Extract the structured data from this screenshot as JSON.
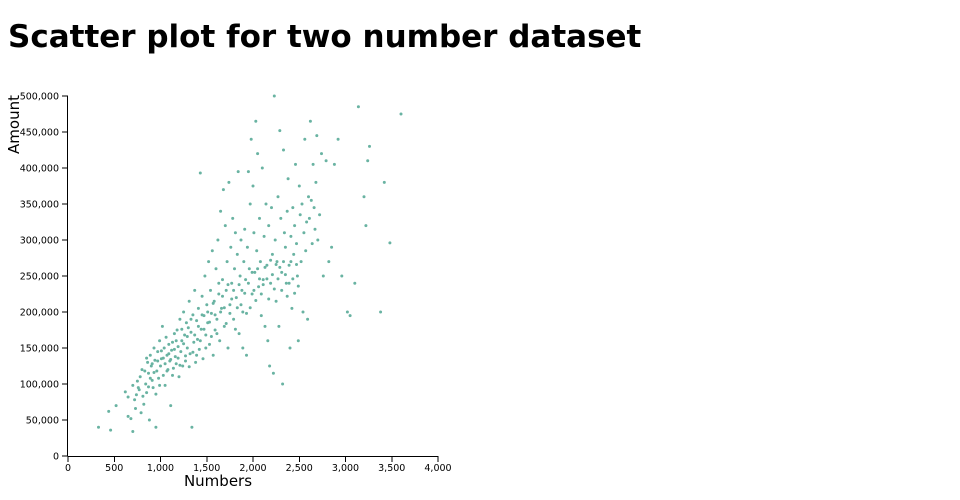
{
  "page": {
    "title": "Scatter plot for two number dataset"
  },
  "chart_data": {
    "type": "scatter",
    "xlabel": "Numbers",
    "ylabel": "Amount",
    "xlim": [
      0,
      4000
    ],
    "ylim": [
      0,
      500000
    ],
    "xticks": [
      0,
      500,
      1000,
      1500,
      2000,
      2500,
      3000,
      3500,
      4000
    ],
    "yticks": [
      0,
      50000,
      100000,
      150000,
      200000,
      250000,
      300000,
      350000,
      400000,
      450000,
      500000
    ],
    "xtick_labels": [
      "0",
      "500",
      "1,000",
      "1,500",
      "2,000",
      "2,500",
      "3,000",
      "3,500",
      "4,000"
    ],
    "ytick_labels": [
      "0",
      "50,000",
      "100,000",
      "150,000",
      "200,000",
      "250,000",
      "300,000",
      "350,000",
      "400,000",
      "450,000",
      "500,000"
    ],
    "grid": false,
    "point_color": "#69b3a2",
    "points": [
      [
        330,
        40000
      ],
      [
        460,
        36000
      ],
      [
        440,
        62000
      ],
      [
        520,
        70000
      ],
      [
        620,
        89000
      ],
      [
        650,
        55000
      ],
      [
        680,
        52000
      ],
      [
        700,
        34000
      ],
      [
        720,
        78000
      ],
      [
        740,
        85000
      ],
      [
        760,
        95000
      ],
      [
        780,
        110000
      ],
      [
        790,
        60000
      ],
      [
        800,
        120000
      ],
      [
        820,
        72000
      ],
      [
        840,
        100000
      ],
      [
        850,
        88000
      ],
      [
        860,
        130000
      ],
      [
        870,
        115000
      ],
      [
        880,
        50000
      ],
      [
        890,
        140000
      ],
      [
        900,
        125000
      ],
      [
        910,
        105000
      ],
      [
        920,
        95000
      ],
      [
        930,
        150000
      ],
      [
        940,
        133000
      ],
      [
        950,
        40000
      ],
      [
        960,
        118000
      ],
      [
        970,
        145000
      ],
      [
        980,
        108000
      ],
      [
        990,
        160000
      ],
      [
        1000,
        125000
      ],
      [
        1010,
        135000
      ],
      [
        1020,
        180000
      ],
      [
        1030,
        112000
      ],
      [
        1040,
        150000
      ],
      [
        1050,
        98000
      ],
      [
        1060,
        165000
      ],
      [
        1070,
        140000
      ],
      [
        1080,
        120000
      ],
      [
        1090,
        155000
      ],
      [
        1100,
        132000
      ],
      [
        1110,
        70000
      ],
      [
        1120,
        147000
      ],
      [
        1130,
        158000
      ],
      [
        1140,
        122000
      ],
      [
        1150,
        170000
      ],
      [
        1160,
        138000
      ],
      [
        1170,
        128000
      ],
      [
        1180,
        175000
      ],
      [
        1190,
        152000
      ],
      [
        1200,
        110000
      ],
      [
        1210,
        190000
      ],
      [
        1220,
        145000
      ],
      [
        1230,
        160000
      ],
      [
        1240,
        125000
      ],
      [
        1250,
        200000
      ],
      [
        1260,
        168000
      ],
      [
        1270,
        139000
      ],
      [
        1280,
        185000
      ],
      [
        1290,
        150000
      ],
      [
        1300,
        178000
      ],
      [
        1310,
        215000
      ],
      [
        1320,
        142000
      ],
      [
        1330,
        172000
      ],
      [
        1340,
        40000
      ],
      [
        1350,
        196000
      ],
      [
        1360,
        158000
      ],
      [
        1370,
        230000
      ],
      [
        1380,
        130000
      ],
      [
        1390,
        188000
      ],
      [
        1400,
        162000
      ],
      [
        1410,
        205000
      ],
      [
        1420,
        148000
      ],
      [
        1430,
        393000
      ],
      [
        1440,
        176000
      ],
      [
        1450,
        222000
      ],
      [
        1460,
        135000
      ],
      [
        1470,
        195000
      ],
      [
        1480,
        250000
      ],
      [
        1490,
        168000
      ],
      [
        1500,
        210000
      ],
      [
        1510,
        185000
      ],
      [
        1520,
        270000
      ],
      [
        1530,
        155000
      ],
      [
        1540,
        230000
      ],
      [
        1550,
        198000
      ],
      [
        1560,
        285000
      ],
      [
        1570,
        140000
      ],
      [
        1580,
        215000
      ],
      [
        1590,
        175000
      ],
      [
        1600,
        260000
      ],
      [
        1610,
        190000
      ],
      [
        1620,
        300000
      ],
      [
        1630,
        225000
      ],
      [
        1640,
        160000
      ],
      [
        1650,
        340000
      ],
      [
        1660,
        205000
      ],
      [
        1670,
        245000
      ],
      [
        1680,
        370000
      ],
      [
        1690,
        180000
      ],
      [
        1700,
        320000
      ],
      [
        1710,
        230000
      ],
      [
        1720,
        270000
      ],
      [
        1730,
        150000
      ],
      [
        1740,
        380000
      ],
      [
        1750,
        210000
      ],
      [
        1760,
        290000
      ],
      [
        1770,
        240000
      ],
      [
        1780,
        330000
      ],
      [
        1790,
        190000
      ],
      [
        1800,
        260000
      ],
      [
        1810,
        310000
      ],
      [
        1820,
        220000
      ],
      [
        1830,
        280000
      ],
      [
        1840,
        395000
      ],
      [
        1850,
        170000
      ],
      [
        1860,
        250000
      ],
      [
        1870,
        300000
      ],
      [
        1880,
        230000
      ],
      [
        1890,
        200000
      ],
      [
        1900,
        270000
      ],
      [
        1910,
        315000
      ],
      [
        1920,
        245000
      ],
      [
        1930,
        140000
      ],
      [
        1940,
        290000
      ],
      [
        1950,
        395000
      ],
      [
        1960,
        260000
      ],
      [
        1970,
        350000
      ],
      [
        1980,
        440000
      ],
      [
        1990,
        225000
      ],
      [
        2000,
        375000
      ],
      [
        2010,
        310000
      ],
      [
        2020,
        255000
      ],
      [
        2030,
        465000
      ],
      [
        2040,
        285000
      ],
      [
        2050,
        420000
      ],
      [
        2060,
        235000
      ],
      [
        2070,
        330000
      ],
      [
        2080,
        270000
      ],
      [
        2090,
        195000
      ],
      [
        2100,
        400000
      ],
      [
        2110,
        245000
      ],
      [
        2120,
        305000
      ],
      [
        2130,
        180000
      ],
      [
        2140,
        350000
      ],
      [
        2150,
        265000
      ],
      [
        2160,
        160000
      ],
      [
        2170,
        320000
      ],
      [
        2180,
        125000
      ],
      [
        2190,
        240000
      ],
      [
        2200,
        345000
      ],
      [
        2210,
        280000
      ],
      [
        2220,
        115000
      ],
      [
        2230,
        500000
      ],
      [
        2240,
        300000
      ],
      [
        2250,
        215000
      ],
      [
        2260,
        270000
      ],
      [
        2270,
        360000
      ],
      [
        2280,
        180000
      ],
      [
        2290,
        452000
      ],
      [
        2300,
        330000
      ],
      [
        2310,
        255000
      ],
      [
        2320,
        100000
      ],
      [
        2330,
        425000
      ],
      [
        2340,
        310000
      ],
      [
        2350,
        290000
      ],
      [
        2360,
        240000
      ],
      [
        2370,
        340000
      ],
      [
        2380,
        385000
      ],
      [
        2390,
        265000
      ],
      [
        2400,
        150000
      ],
      [
        2410,
        305000
      ],
      [
        2420,
        205000
      ],
      [
        2430,
        345000
      ],
      [
        2440,
        280000
      ],
      [
        2450,
        320000
      ],
      [
        2460,
        405000
      ],
      [
        2470,
        295000
      ],
      [
        2480,
        250000
      ],
      [
        2490,
        160000
      ],
      [
        2500,
        375000
      ],
      [
        2510,
        335000
      ],
      [
        2520,
        270000
      ],
      [
        2530,
        350000
      ],
      [
        2540,
        200000
      ],
      [
        2550,
        310000
      ],
      [
        2560,
        440000
      ],
      [
        2570,
        285000
      ],
      [
        2580,
        325000
      ],
      [
        2590,
        190000
      ],
      [
        2600,
        360000
      ],
      [
        2610,
        330000
      ],
      [
        2620,
        465000
      ],
      [
        2630,
        355000
      ],
      [
        2640,
        295000
      ],
      [
        2650,
        405000
      ],
      [
        2660,
        345000
      ],
      [
        2670,
        315000
      ],
      [
        2680,
        380000
      ],
      [
        2690,
        445000
      ],
      [
        2700,
        300000
      ],
      [
        2720,
        335000
      ],
      [
        2740,
        420000
      ],
      [
        2760,
        250000
      ],
      [
        2790,
        410000
      ],
      [
        2820,
        270000
      ],
      [
        2850,
        290000
      ],
      [
        2880,
        405000
      ],
      [
        2920,
        440000
      ],
      [
        2960,
        250000
      ],
      [
        3020,
        200000
      ],
      [
        3050,
        195000
      ],
      [
        3100,
        240000
      ],
      [
        3140,
        485000
      ],
      [
        3200,
        360000
      ],
      [
        3220,
        320000
      ],
      [
        3240,
        410000
      ],
      [
        3260,
        430000
      ],
      [
        3380,
        200000
      ],
      [
        3420,
        380000
      ],
      [
        3480,
        296000
      ],
      [
        3600,
        475000
      ],
      [
        650,
        82000
      ],
      [
        700,
        98000
      ],
      [
        730,
        66000
      ],
      [
        750,
        104000
      ],
      [
        770,
        92000
      ],
      [
        810,
        83000
      ],
      [
        830,
        118000
      ],
      [
        850,
        136000
      ],
      [
        870,
        96000
      ],
      [
        890,
        108000
      ],
      [
        910,
        128000
      ],
      [
        930,
        116000
      ],
      [
        950,
        86000
      ],
      [
        970,
        132000
      ],
      [
        990,
        98000
      ],
      [
        1010,
        146000
      ],
      [
        1030,
        136000
      ],
      [
        1050,
        128000
      ],
      [
        1070,
        118000
      ],
      [
        1090,
        142000
      ],
      [
        1110,
        134000
      ],
      [
        1130,
        112000
      ],
      [
        1150,
        148000
      ],
      [
        1170,
        160000
      ],
      [
        1190,
        136000
      ],
      [
        1210,
        126000
      ],
      [
        1230,
        176000
      ],
      [
        1250,
        156000
      ],
      [
        1270,
        132000
      ],
      [
        1290,
        166000
      ],
      [
        1310,
        124000
      ],
      [
        1330,
        190000
      ],
      [
        1350,
        144000
      ],
      [
        1370,
        168000
      ],
      [
        1390,
        140000
      ],
      [
        1410,
        180000
      ],
      [
        1430,
        160000
      ],
      [
        1450,
        196000
      ],
      [
        1470,
        176000
      ],
      [
        1490,
        150000
      ],
      [
        1510,
        200000
      ],
      [
        1530,
        186000
      ],
      [
        1550,
        166000
      ],
      [
        1570,
        212000
      ],
      [
        1590,
        196000
      ],
      [
        1610,
        170000
      ],
      [
        1630,
        240000
      ],
      [
        1650,
        200000
      ],
      [
        1670,
        222000
      ],
      [
        1690,
        206000
      ],
      [
        1710,
        184000
      ],
      [
        1730,
        238000
      ],
      [
        1750,
        198000
      ],
      [
        1770,
        218000
      ],
      [
        1790,
        230000
      ],
      [
        1810,
        176000
      ],
      [
        1830,
        206000
      ],
      [
        1850,
        238000
      ],
      [
        1870,
        210000
      ],
      [
        1890,
        150000
      ],
      [
        1910,
        226000
      ],
      [
        1930,
        198000
      ],
      [
        1950,
        240000
      ],
      [
        1970,
        206000
      ],
      [
        1990,
        255000
      ],
      [
        2010,
        230000
      ],
      [
        2030,
        216000
      ],
      [
        2050,
        260000
      ],
      [
        2070,
        246000
      ],
      [
        2090,
        225000
      ],
      [
        2110,
        238000
      ],
      [
        2130,
        262000
      ],
      [
        2150,
        246000
      ],
      [
        2170,
        218000
      ],
      [
        2190,
        272000
      ],
      [
        2210,
        252000
      ],
      [
        2230,
        232000
      ],
      [
        2250,
        266000
      ],
      [
        2270,
        246000
      ],
      [
        2290,
        262000
      ],
      [
        2310,
        230000
      ],
      [
        2330,
        270000
      ],
      [
        2350,
        252000
      ],
      [
        2370,
        222000
      ],
      [
        2390,
        240000
      ],
      [
        2410,
        270000
      ],
      [
        2430,
        246000
      ],
      [
        2450,
        226000
      ],
      [
        2470,
        266000
      ],
      [
        2490,
        236000
      ]
    ]
  }
}
